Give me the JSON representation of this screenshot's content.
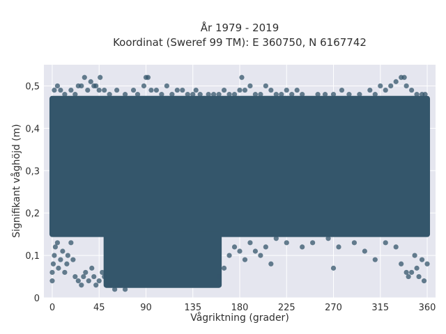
{
  "chart_data": {
    "type": "scatter",
    "title": "År 1979 - 2019",
    "subtitle": "Koordinat (Sweref 99 TM): E 360750, N 6167742",
    "xlabel": "Vågriktning (grader)",
    "ylabel": "Signifikant våghöjd (m)",
    "xlim": [
      -8,
      368
    ],
    "ylim": [
      0,
      0.55
    ],
    "x_ticks": [
      0,
      45,
      90,
      135,
      180,
      225,
      270,
      315,
      360
    ],
    "x_tick_labels": [
      "0",
      "45",
      "90",
      "135",
      "180",
      "225",
      "270",
      "315",
      "360"
    ],
    "y_ticks": [
      0,
      0.1,
      0.2,
      0.3,
      0.4,
      0.5
    ],
    "y_tick_labels": [
      "0",
      "0,1",
      "0,2",
      "0,3",
      "0,4",
      "0,5"
    ],
    "grid": true,
    "legend": "none",
    "colors": {
      "plot_background": "#e5e6ef",
      "marker": "#34566b",
      "grid": "#ffffff"
    },
    "series": [
      {
        "name": "",
        "dense_region_bounds": [
          {
            "x": [
              0,
              360
            ],
            "y": [
              0.15,
              0.47
            ]
          },
          {
            "x": [
              52,
              160
            ],
            "y": [
              0.03,
              0.15
            ]
          }
        ],
        "points": [
          [
            0,
            0.04
          ],
          [
            0,
            0.06
          ],
          [
            1,
            0.08
          ],
          [
            2,
            0.1
          ],
          [
            3,
            0.12
          ],
          [
            5,
            0.13
          ],
          [
            6,
            0.07
          ],
          [
            8,
            0.09
          ],
          [
            10,
            0.11
          ],
          [
            12,
            0.06
          ],
          [
            14,
            0.08
          ],
          [
            15,
            0.1
          ],
          [
            18,
            0.13
          ],
          [
            20,
            0.09
          ],
          [
            22,
            0.05
          ],
          [
            25,
            0.04
          ],
          [
            28,
            0.03
          ],
          [
            30,
            0.05
          ],
          [
            32,
            0.06
          ],
          [
            35,
            0.04
          ],
          [
            38,
            0.07
          ],
          [
            40,
            0.05
          ],
          [
            42,
            0.03
          ],
          [
            45,
            0.04
          ],
          [
            48,
            0.06
          ],
          [
            50,
            0.05
          ],
          [
            55,
            0.03
          ],
          [
            60,
            0.02
          ],
          [
            65,
            0.03
          ],
          [
            70,
            0.02
          ],
          [
            160,
            0.05
          ],
          [
            165,
            0.07
          ],
          [
            170,
            0.1
          ],
          [
            175,
            0.12
          ],
          [
            180,
            0.11
          ],
          [
            185,
            0.09
          ],
          [
            190,
            0.13
          ],
          [
            195,
            0.11
          ],
          [
            200,
            0.1
          ],
          [
            205,
            0.12
          ],
          [
            210,
            0.08
          ],
          [
            215,
            0.14
          ],
          [
            225,
            0.13
          ],
          [
            240,
            0.12
          ],
          [
            250,
            0.13
          ],
          [
            265,
            0.14
          ],
          [
            270,
            0.07
          ],
          [
            275,
            0.12
          ],
          [
            290,
            0.13
          ],
          [
            300,
            0.11
          ],
          [
            310,
            0.09
          ],
          [
            320,
            0.13
          ],
          [
            330,
            0.12
          ],
          [
            335,
            0.08
          ],
          [
            340,
            0.06
          ],
          [
            342,
            0.05
          ],
          [
            345,
            0.06
          ],
          [
            348,
            0.1
          ],
          [
            350,
            0.07
          ],
          [
            352,
            0.05
          ],
          [
            355,
            0.09
          ],
          [
            357,
            0.04
          ],
          [
            360,
            0.08
          ],
          [
            2,
            0.49
          ],
          [
            5,
            0.5
          ],
          [
            8,
            0.49
          ],
          [
            12,
            0.48
          ],
          [
            18,
            0.49
          ],
          [
            22,
            0.48
          ],
          [
            25,
            0.5
          ],
          [
            28,
            0.5
          ],
          [
            31,
            0.52
          ],
          [
            34,
            0.49
          ],
          [
            37,
            0.51
          ],
          [
            40,
            0.5
          ],
          [
            42,
            0.5
          ],
          [
            45,
            0.49
          ],
          [
            46,
            0.52
          ],
          [
            50,
            0.49
          ],
          [
            55,
            0.48
          ],
          [
            62,
            0.49
          ],
          [
            70,
            0.48
          ],
          [
            78,
            0.49
          ],
          [
            82,
            0.48
          ],
          [
            88,
            0.5
          ],
          [
            90,
            0.52
          ],
          [
            92,
            0.52
          ],
          [
            95,
            0.49
          ],
          [
            100,
            0.49
          ],
          [
            105,
            0.48
          ],
          [
            110,
            0.5
          ],
          [
            115,
            0.48
          ],
          [
            120,
            0.49
          ],
          [
            125,
            0.49
          ],
          [
            130,
            0.48
          ],
          [
            135,
            0.48
          ],
          [
            138,
            0.49
          ],
          [
            142,
            0.48
          ],
          [
            150,
            0.48
          ],
          [
            155,
            0.48
          ],
          [
            160,
            0.48
          ],
          [
            165,
            0.49
          ],
          [
            170,
            0.48
          ],
          [
            175,
            0.48
          ],
          [
            180,
            0.49
          ],
          [
            182,
            0.52
          ],
          [
            185,
            0.49
          ],
          [
            190,
            0.5
          ],
          [
            195,
            0.48
          ],
          [
            200,
            0.48
          ],
          [
            205,
            0.5
          ],
          [
            210,
            0.49
          ],
          [
            215,
            0.48
          ],
          [
            220,
            0.48
          ],
          [
            225,
            0.49
          ],
          [
            230,
            0.48
          ],
          [
            235,
            0.49
          ],
          [
            240,
            0.48
          ],
          [
            255,
            0.48
          ],
          [
            262,
            0.48
          ],
          [
            270,
            0.48
          ],
          [
            278,
            0.49
          ],
          [
            285,
            0.48
          ],
          [
            295,
            0.48
          ],
          [
            305,
            0.49
          ],
          [
            310,
            0.48
          ],
          [
            315,
            0.5
          ],
          [
            320,
            0.49
          ],
          [
            325,
            0.5
          ],
          [
            330,
            0.51
          ],
          [
            335,
            0.52
          ],
          [
            338,
            0.52
          ],
          [
            340,
            0.5
          ],
          [
            345,
            0.49
          ],
          [
            350,
            0.48
          ],
          [
            355,
            0.48
          ],
          [
            358,
            0.48
          ]
        ]
      }
    ]
  }
}
